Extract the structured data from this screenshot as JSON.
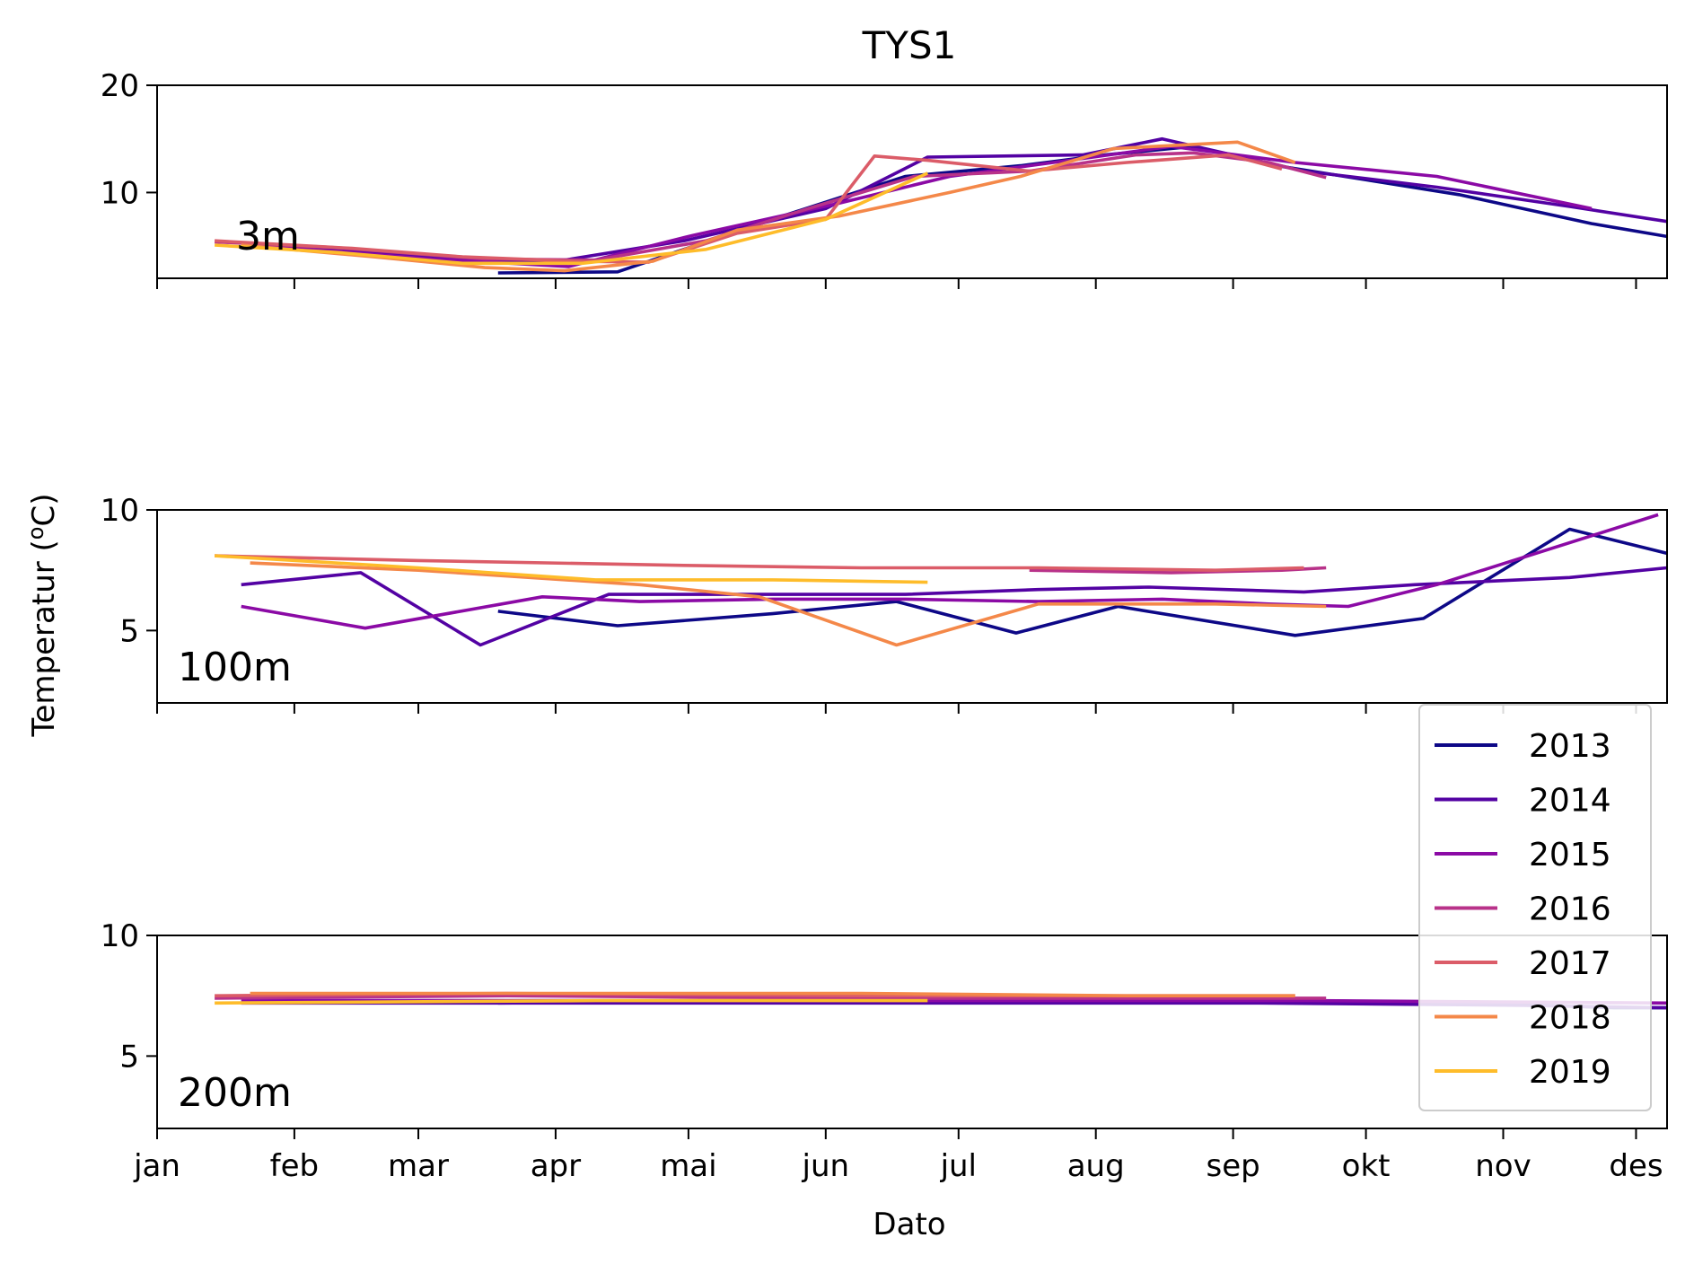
{
  "chart_data": {
    "type": "line",
    "title": "TYS1",
    "xlabel": "Dato",
    "ylabel": "Temperatur (°C)",
    "ylabel_parts": {
      "pre": "Temperatur (",
      "sup": "o",
      "post": "C)"
    },
    "x_ticks": [
      "jan",
      "feb",
      "mar",
      "apr",
      "mai",
      "jun",
      "jul",
      "aug",
      "sep",
      "okt",
      "nov",
      "des"
    ],
    "x_unit": "day of year (1 = 1 jan)",
    "xlim": [
      1,
      342
    ],
    "legend": {
      "placement": "lower-right",
      "entries": [
        "2013",
        "2014",
        "2015",
        "2016",
        "2017",
        "2018",
        "2019"
      ]
    },
    "colors": {
      "2013": "#0d0887",
      "2014": "#5302a3",
      "2015": "#8b0aa5",
      "2016": "#b83289",
      "2017": "#db5c68",
      "2018": "#f48849",
      "2019": "#febc2a"
    },
    "panels": [
      {
        "label": "3m",
        "ylim": [
          2,
          20
        ],
        "yticks": [
          10,
          20
        ],
        "series": [
          {
            "name": "2013",
            "x": [
              78,
              105,
              140,
              170,
              196,
              215,
              235,
              254,
              295,
              325,
              342
            ],
            "y": [
              2.5,
              2.6,
              7.5,
              11.5,
              12.5,
              13.5,
              14.3,
              12.5,
              9.8,
              7.1,
              5.9
            ]
          },
          {
            "name": "2014",
            "x": [
              25,
              60,
              90,
              120,
              152,
              175,
              210,
              228,
              260,
              290,
              320,
              342
            ],
            "y": [
              5.2,
              4.0,
              3.5,
              5.5,
              8.5,
              13.3,
              13.5,
              15.0,
              12.0,
              10.5,
              8.7,
              7.3
            ]
          },
          {
            "name": "2015",
            "x": [
              26,
              63,
              94,
              122,
              155,
              180,
              207,
              230,
              258,
              290,
              325
            ],
            "y": [
              5.0,
              3.8,
              3.1,
              6.0,
              9.0,
              11.5,
              13.0,
              14.3,
              12.8,
              11.5,
              8.5
            ]
          },
          {
            "name": "2016",
            "x": [
              14,
              40,
              75,
              100,
              125,
              148,
              172,
              198,
              222,
              235,
              252,
              265
            ],
            "y": [
              5.4,
              4.9,
              3.8,
              3.7,
              5.5,
              8.5,
              11.5,
              12.0,
              13.5,
              13.7,
              12.8,
              11.4
            ]
          },
          {
            "name": "2017",
            "x": [
              14,
              45,
              70,
              95,
              112,
              132,
              152,
              163,
              175,
              198,
              220,
              243,
              255
            ],
            "y": [
              5.5,
              4.8,
              4.0,
              3.6,
              3.5,
              6.2,
              7.5,
              13.4,
              13.0,
              12.0,
              12.8,
              13.5,
              12.2
            ]
          },
          {
            "name": "2018",
            "x": [
              20,
              50,
              75,
              93,
              113,
              132,
              155,
              180,
              196,
              217,
              245,
              258
            ],
            "y": [
              5.1,
              4.0,
              3.0,
              2.7,
              3.6,
              6.5,
              7.8,
              10.0,
              11.5,
              14.1,
              14.7,
              12.8
            ]
          },
          {
            "name": "2019",
            "x": [
              14,
              42,
              70,
              97,
              125,
              152,
              175
            ],
            "y": [
              5.1,
              4.4,
              3.4,
              3.4,
              4.7,
              7.5,
              11.8
            ]
          }
        ]
      },
      {
        "label": "100m",
        "ylim": [
          2,
          10
        ],
        "yticks": [
          5,
          10
        ],
        "series": [
          {
            "name": "2013",
            "x": [
              78,
              105,
              140,
              168,
              195,
              218,
              258,
              287,
              320,
              342
            ],
            "y": [
              5.8,
              5.2,
              5.7,
              6.2,
              4.9,
              6.0,
              4.8,
              5.5,
              9.2,
              8.2
            ]
          },
          {
            "name": "2014",
            "x": [
              20,
              47,
              74,
              103,
              135,
              170,
              200,
              225,
              260,
              285,
              320,
              342
            ],
            "y": [
              6.9,
              7.4,
              4.4,
              6.5,
              6.5,
              6.5,
              6.7,
              6.8,
              6.6,
              6.9,
              7.2,
              7.6
            ]
          },
          {
            "name": "2015",
            "x": [
              20,
              48,
              88,
              110,
              140,
              170,
              200,
              228,
              252,
              270,
              290,
              340
            ],
            "y": [
              6.0,
              5.1,
              6.4,
              6.2,
              6.3,
              6.3,
              6.2,
              6.3,
              6.1,
              6.0,
              6.9,
              9.8
            ]
          },
          {
            "name": "2016",
            "x": [
              198,
              230,
              255,
              265
            ],
            "y": [
              7.5,
              7.4,
              7.5,
              7.6
            ]
          },
          {
            "name": "2017",
            "x": [
              14,
              60,
              120,
              160,
              200,
              240,
              260
            ],
            "y": [
              8.1,
              7.9,
              7.7,
              7.6,
              7.6,
              7.5,
              7.6
            ]
          },
          {
            "name": "2018",
            "x": [
              22,
              60,
              110,
              137,
              168,
              200,
              240,
              265
            ],
            "y": [
              7.8,
              7.5,
              6.9,
              6.4,
              4.4,
              6.1,
              6.1,
              6.0
            ]
          },
          {
            "name": "2019",
            "x": [
              14,
              60,
              100,
              140,
              175
            ],
            "y": [
              8.1,
              7.6,
              7.1,
              7.1,
              7.0
            ]
          }
        ]
      },
      {
        "label": "200m",
        "ylim": [
          2,
          10
        ],
        "yticks": [
          5,
          10
        ],
        "series": [
          {
            "name": "2013",
            "x": [
              78,
              150,
              200,
              260,
              300,
              330,
              342
            ],
            "y": [
              7.2,
              7.3,
              7.3,
              7.3,
              7.2,
              7.0,
              7.0
            ]
          },
          {
            "name": "2014",
            "x": [
              20,
              100,
              180,
              250,
              310,
              342
            ],
            "y": [
              7.2,
              7.2,
              7.2,
              7.2,
              7.1,
              7.0
            ]
          },
          {
            "name": "2015",
            "x": [
              20,
              100,
              180,
              260,
              342
            ],
            "y": [
              7.3,
              7.3,
              7.3,
              7.3,
              7.2
            ]
          },
          {
            "name": "2016",
            "x": [
              14,
              80,
              160,
              240,
              265
            ],
            "y": [
              7.4,
              7.5,
              7.4,
              7.4,
              7.4
            ]
          },
          {
            "name": "2017",
            "x": [
              14,
              80,
              160,
              240,
              258
            ],
            "y": [
              7.5,
              7.6,
              7.5,
              7.5,
              7.5
            ]
          },
          {
            "name": "2018",
            "x": [
              22,
              90,
              160,
              220,
              258
            ],
            "y": [
              7.6,
              7.6,
              7.6,
              7.5,
              7.5
            ]
          },
          {
            "name": "2019",
            "x": [
              14,
              100,
              175
            ],
            "y": [
              7.2,
              7.3,
              7.3
            ]
          }
        ]
      }
    ]
  }
}
